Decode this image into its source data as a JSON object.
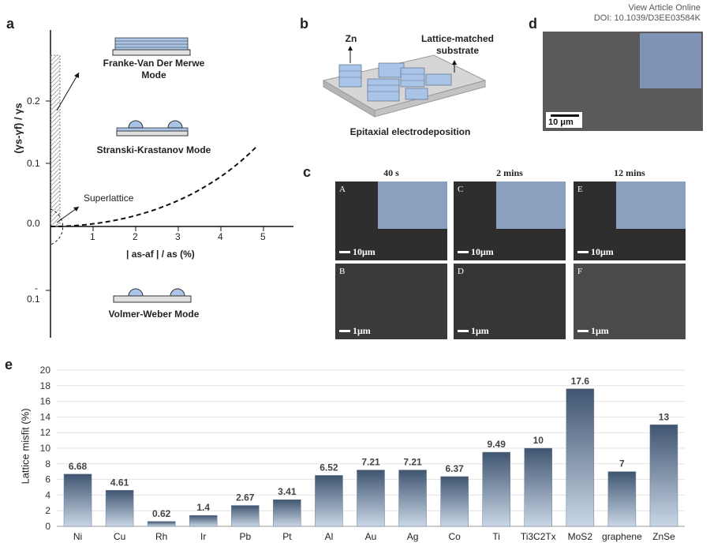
{
  "header": {
    "view_online": "View Article Online",
    "doi": "DOI: 10.1039/D3EE03584K"
  },
  "panel_letters": {
    "a": "a",
    "b": "b",
    "c": "c",
    "d": "d",
    "e": "e"
  },
  "panel_a": {
    "ylabel": "(γs-γf) / γs",
    "xlabel": "| as-af | / as (%)",
    "y_ticks": [
      "0.2",
      "0.1",
      "0.0",
      "-",
      "0.1"
    ],
    "x_ticks": [
      "1",
      "2",
      "3",
      "4",
      "5"
    ],
    "modes": {
      "fvdm_1": "Franke-Van Der Merwe",
      "fvdm_2": "Mode",
      "sk": "Stranski-Krastanov Mode",
      "vw": "Volmer-Weber Mode",
      "superlattice": "Superlattice"
    }
  },
  "panel_b": {
    "zn": "Zn",
    "substrate_1": "Lattice-matched",
    "substrate_2": "substrate",
    "caption": "Epitaxial electrodeposition"
  },
  "panel_c": {
    "times": [
      "40 s",
      "2 mins",
      "12 mins"
    ],
    "images": [
      {
        "corner": "A",
        "scale": "10μm"
      },
      {
        "corner": "C",
        "scale": "10μm"
      },
      {
        "corner": "E",
        "scale": "10μm"
      },
      {
        "corner": "B",
        "scale": "1μm"
      },
      {
        "corner": "D",
        "scale": "1μm"
      },
      {
        "corner": "F",
        "scale": "1μm"
      }
    ]
  },
  "panel_d": {
    "scale": "10 μm"
  },
  "chart_data": {
    "type": "bar",
    "title": "",
    "xlabel": "",
    "ylabel": "Lattice misfit (%)",
    "categories": [
      "Ni",
      "Cu",
      "Rh",
      "Ir",
      "Pb",
      "Pt",
      "Al",
      "Au",
      "Ag",
      "Co",
      "Ti",
      "Ti3C2Tx",
      "MoS2",
      "graphene",
      "ZnSe"
    ],
    "values": [
      6.68,
      4.61,
      0.62,
      1.4,
      2.67,
      3.41,
      6.52,
      7.21,
      7.21,
      6.37,
      9.49,
      10,
      17.6,
      7,
      13
    ],
    "value_labels": [
      "6.68",
      "4.61",
      "0.62",
      "1.4",
      "2.67",
      "3.41",
      "6.52",
      "7.21",
      "7.21",
      "6.37",
      "9.49",
      "10",
      "17.6",
      "7",
      "13"
    ],
    "ylim": [
      0,
      20
    ],
    "y_ticks": [
      0,
      2,
      4,
      6,
      8,
      10,
      12,
      14,
      16,
      18,
      20
    ],
    "grid": true,
    "colors": {
      "bar_top": "#3f5570",
      "bar_bottom": "#c9d6e6"
    }
  }
}
